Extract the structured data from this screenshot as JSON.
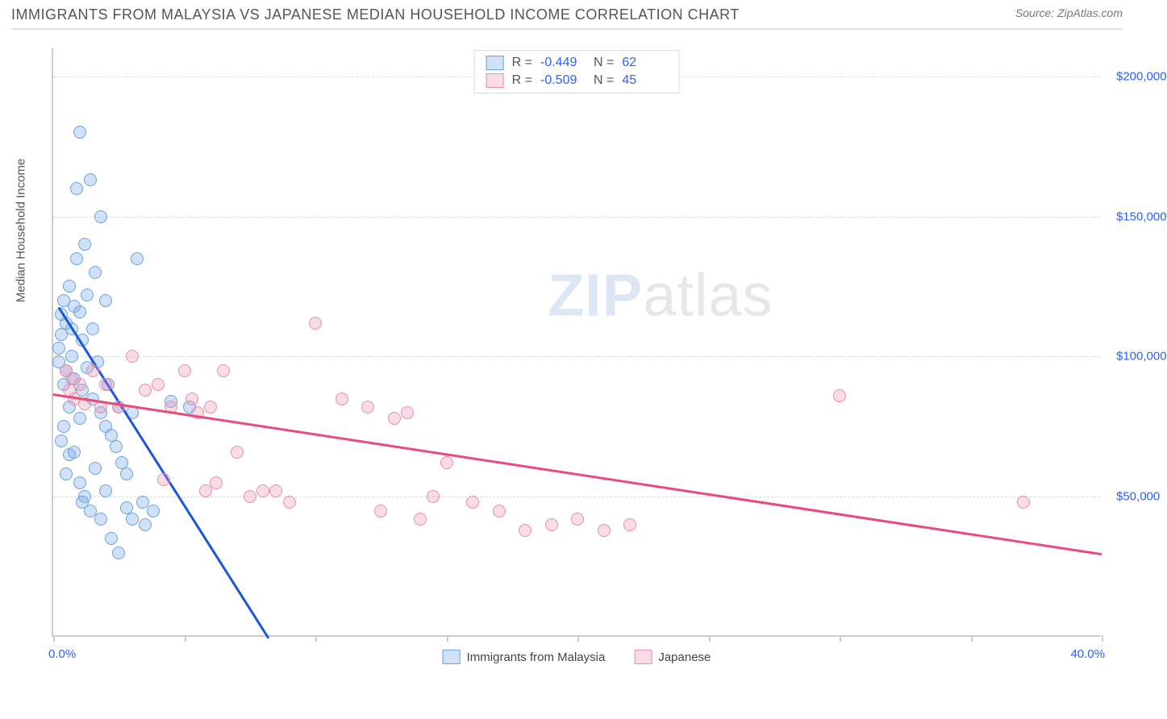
{
  "header": {
    "title": "IMMIGRANTS FROM MALAYSIA VS JAPANESE MEDIAN HOUSEHOLD INCOME CORRELATION CHART",
    "source_prefix": "Source: ",
    "source_name": "ZipAtlas.com"
  },
  "watermark": {
    "part1": "ZIP",
    "part2": "atlas"
  },
  "chart": {
    "type": "scatter",
    "y_axis_label": "Median Household Income",
    "background_color": "#ffffff",
    "grid_color": "#dddddd",
    "axis_color": "#cccccc",
    "tick_label_color": "#2962ff",
    "x_range": [
      0,
      40
    ],
    "y_range": [
      0,
      210000
    ],
    "x_ticks": [
      0,
      5,
      10,
      15,
      20,
      25,
      30,
      35,
      40
    ],
    "x_edge_labels": {
      "min": "0.0%",
      "max": "40.0%"
    },
    "y_ticks": [
      {
        "value": 50000,
        "label": "$50,000"
      },
      {
        "value": 100000,
        "label": "$100,000"
      },
      {
        "value": 150000,
        "label": "$150,000"
      },
      {
        "value": 200000,
        "label": "$200,000"
      }
    ],
    "series": [
      {
        "id": "malaysia",
        "name": "Immigrants from Malaysia",
        "fill_color": "rgba(120,170,235,0.35)",
        "stroke_color": "#6aa3e0",
        "line_color": "#1b56d6",
        "R": "-0.449",
        "N": "62",
        "trend": {
          "x1": 0.2,
          "y1": 118000,
          "x2": 8.2,
          "y2": 0
        },
        "points": [
          [
            0.2,
            98000
          ],
          [
            0.2,
            103000
          ],
          [
            0.3,
            115000
          ],
          [
            0.3,
            108000
          ],
          [
            0.4,
            120000
          ],
          [
            0.4,
            90000
          ],
          [
            0.5,
            112000
          ],
          [
            0.5,
            95000
          ],
          [
            0.6,
            125000
          ],
          [
            0.6,
            82000
          ],
          [
            0.7,
            110000
          ],
          [
            0.7,
            100000
          ],
          [
            0.8,
            118000
          ],
          [
            0.8,
            92000
          ],
          [
            0.9,
            160000
          ],
          [
            0.9,
            135000
          ],
          [
            1.0,
            180000
          ],
          [
            1.0,
            116000
          ],
          [
            1.1,
            106000
          ],
          [
            1.1,
            88000
          ],
          [
            1.2,
            140000
          ],
          [
            1.3,
            122000
          ],
          [
            1.3,
            96000
          ],
          [
            1.4,
            163000
          ],
          [
            1.5,
            110000
          ],
          [
            1.5,
            85000
          ],
          [
            1.6,
            130000
          ],
          [
            1.7,
            98000
          ],
          [
            1.8,
            150000
          ],
          [
            1.8,
            80000
          ],
          [
            2.0,
            120000
          ],
          [
            2.0,
            75000
          ],
          [
            2.1,
            90000
          ],
          [
            2.2,
            72000
          ],
          [
            2.4,
            68000
          ],
          [
            2.5,
            82000
          ],
          [
            2.6,
            62000
          ],
          [
            2.8,
            58000
          ],
          [
            2.8,
            46000
          ],
          [
            3.0,
            42000
          ],
          [
            3.0,
            80000
          ],
          [
            3.2,
            135000
          ],
          [
            3.4,
            48000
          ],
          [
            3.5,
            40000
          ],
          [
            1.0,
            55000
          ],
          [
            1.2,
            50000
          ],
          [
            1.4,
            45000
          ],
          [
            1.6,
            60000
          ],
          [
            0.5,
            58000
          ],
          [
            0.6,
            65000
          ],
          [
            2.2,
            35000
          ],
          [
            2.5,
            30000
          ],
          [
            1.8,
            42000
          ],
          [
            3.8,
            45000
          ],
          [
            1.0,
            78000
          ],
          [
            0.4,
            75000
          ],
          [
            0.3,
            70000
          ],
          [
            0.8,
            66000
          ],
          [
            4.5,
            84000
          ],
          [
            5.2,
            82000
          ],
          [
            1.1,
            48000
          ],
          [
            2.0,
            52000
          ]
        ]
      },
      {
        "id": "japanese",
        "name": "Japanese",
        "fill_color": "rgba(240,140,170,0.30)",
        "stroke_color": "#e68fb0",
        "line_color": "#e94b7a",
        "R": "-0.509",
        "N": "45",
        "trend": {
          "x1": 0.0,
          "y1": 87000,
          "x2": 40.0,
          "y2": 30000
        },
        "points": [
          [
            0.5,
            95000
          ],
          [
            0.6,
            88000
          ],
          [
            0.7,
            92000
          ],
          [
            0.8,
            85000
          ],
          [
            1.0,
            90000
          ],
          [
            1.2,
            83000
          ],
          [
            1.5,
            95000
          ],
          [
            1.8,
            82000
          ],
          [
            2.0,
            90000
          ],
          [
            2.5,
            82000
          ],
          [
            3.0,
            100000
          ],
          [
            3.5,
            88000
          ],
          [
            4.0,
            90000
          ],
          [
            4.5,
            82000
          ],
          [
            5.0,
            95000
          ],
          [
            5.3,
            85000
          ],
          [
            5.5,
            80000
          ],
          [
            6.0,
            82000
          ],
          [
            6.5,
            95000
          ],
          [
            7.0,
            66000
          ],
          [
            7.5,
            50000
          ],
          [
            8.0,
            52000
          ],
          [
            9.0,
            48000
          ],
          [
            10.0,
            112000
          ],
          [
            11.0,
            85000
          ],
          [
            12.0,
            82000
          ],
          [
            12.5,
            45000
          ],
          [
            13.0,
            78000
          ],
          [
            13.5,
            80000
          ],
          [
            14.0,
            42000
          ],
          [
            14.5,
            50000
          ],
          [
            15.0,
            62000
          ],
          [
            16.0,
            48000
          ],
          [
            17.0,
            45000
          ],
          [
            18.0,
            38000
          ],
          [
            19.0,
            40000
          ],
          [
            20.0,
            42000
          ],
          [
            21.0,
            38000
          ],
          [
            22.0,
            40000
          ],
          [
            30.0,
            86000
          ],
          [
            37.0,
            48000
          ],
          [
            6.2,
            55000
          ],
          [
            8.5,
            52000
          ],
          [
            5.8,
            52000
          ],
          [
            4.2,
            56000
          ]
        ]
      }
    ],
    "stats_legend_labels": {
      "R": "R =",
      "N": "N ="
    },
    "marker_radius": 8,
    "line_width": 2.5
  }
}
